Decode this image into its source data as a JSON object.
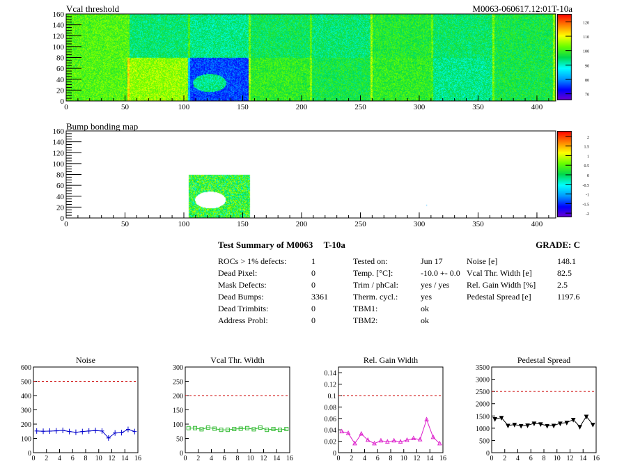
{
  "header": {
    "module_id": "M0063-060617.12:01T-10a"
  },
  "heatmaps": [
    {
      "title": "Vcal threshold",
      "xlim": [
        0,
        416
      ],
      "ylim": [
        0,
        160
      ],
      "xticks": [
        "0",
        "50",
        "100",
        "150",
        "200",
        "250",
        "300",
        "350",
        "400"
      ],
      "yticks": [
        "0",
        "20",
        "40",
        "60",
        "80",
        "100",
        "120",
        "140",
        "160"
      ],
      "palette_ticks": [
        "70",
        "80",
        "90",
        "100",
        "110",
        "120"
      ]
    },
    {
      "title": "Bump bonding map",
      "xlim": [
        0,
        416
      ],
      "ylim": [
        0,
        160
      ],
      "xticks": [
        "0",
        "50",
        "100",
        "150",
        "200",
        "250",
        "300",
        "350",
        "400"
      ],
      "yticks": [
        "0",
        "20",
        "40",
        "60",
        "80",
        "100",
        "120",
        "140",
        "160"
      ],
      "palette_ticks": [
        "-2",
        "-1.5",
        "-1",
        "-0.5",
        "0",
        "0.5",
        "1",
        "1.5",
        "2"
      ]
    }
  ],
  "summary": {
    "title": "Test Summary of M0063",
    "temp_tag": "T-10a",
    "grade_label": "GRADE:  C",
    "col1": [
      {
        "label": "ROCs > 1% defects:",
        "value": "1"
      },
      {
        "label": "Dead Pixel:",
        "value": "0"
      },
      {
        "label": "Mask Defects:",
        "value": "0"
      },
      {
        "label": "Dead Bumps:",
        "value": "3361"
      },
      {
        "label": "Dead Trimbits:",
        "value": "0"
      },
      {
        "label": "Address Probl:",
        "value": "0"
      }
    ],
    "col2": [
      {
        "label": "Tested on:",
        "value": "Jun 17"
      },
      {
        "label": "Temp. [°C]:",
        "value": "-10.0 +- 0.0"
      },
      {
        "label": "Trim / phCal:",
        "value": "yes / yes"
      },
      {
        "label": "Therm. cycl.:",
        "value": "yes"
      },
      {
        "label": "TBM1:",
        "value": "ok"
      },
      {
        "label": "TBM2:",
        "value": "ok"
      }
    ],
    "col3": [
      {
        "label": "Noise [e]",
        "value": "148.1"
      },
      {
        "label": "Vcal Thr. Width [e]",
        "value": "82.5"
      },
      {
        "label": "Rel. Gain Width [%]",
        "value": "2.5"
      },
      {
        "label": "Pedestal Spread [e]",
        "value": "1197.6"
      }
    ]
  },
  "colors": {
    "noise": "#0000cc",
    "vcal": "#33bb33",
    "gain": "#dd22cc",
    "pedestal": "#000000",
    "limit": "#cc0000"
  },
  "chart_data": [
    {
      "type": "line",
      "title": "Noise",
      "x": [
        0,
        1,
        2,
        3,
        4,
        5,
        6,
        7,
        8,
        9,
        10,
        11,
        12,
        13,
        14,
        15
      ],
      "values": [
        152,
        150,
        151,
        153,
        156,
        148,
        143,
        148,
        152,
        155,
        152,
        103,
        138,
        140,
        163,
        148
      ],
      "limit": 500,
      "xlim": [
        0,
        16
      ],
      "ylim": [
        0,
        600
      ],
      "xticks": [
        "0",
        "2",
        "4",
        "6",
        "8",
        "10",
        "12",
        "14",
        "16"
      ],
      "yticks": [
        "0",
        "100",
        "200",
        "300",
        "400",
        "500",
        "600"
      ]
    },
    {
      "type": "line",
      "title": "Vcal Thr. Width",
      "x": [
        0,
        1,
        2,
        3,
        4,
        5,
        6,
        7,
        8,
        9,
        10,
        11,
        12,
        13,
        14,
        15
      ],
      "values": [
        86,
        86,
        82,
        88,
        84,
        80,
        80,
        83,
        84,
        86,
        82,
        88,
        80,
        83,
        80,
        83
      ],
      "limit": 200,
      "xlim": [
        0,
        16
      ],
      "ylim": [
        0,
        300
      ],
      "xticks": [
        "0",
        "2",
        "4",
        "6",
        "8",
        "10",
        "12",
        "14",
        "16"
      ],
      "yticks": [
        "0",
        "50",
        "100",
        "150",
        "200",
        "250",
        "300"
      ]
    },
    {
      "type": "line",
      "title": "Rel. Gain Width",
      "x": [
        0,
        1,
        2,
        3,
        4,
        5,
        6,
        7,
        8,
        9,
        10,
        11,
        12,
        13,
        14,
        15
      ],
      "values": [
        0.037,
        0.034,
        0.016,
        0.033,
        0.022,
        0.016,
        0.021,
        0.019,
        0.021,
        0.019,
        0.022,
        0.025,
        0.023,
        0.058,
        0.027,
        0.016
      ],
      "limit": 0.1,
      "xlim": [
        0,
        16
      ],
      "ylim": [
        0,
        0.15
      ],
      "xticks": [
        "0",
        "2",
        "4",
        "6",
        "8",
        "10",
        "12",
        "14",
        "16"
      ],
      "yticks": [
        "0",
        "0.02",
        "0.04",
        "0.06",
        "0.08",
        "0.1",
        "0.12",
        "0.14"
      ]
    },
    {
      "type": "line",
      "title": "Pedestal Spread",
      "x": [
        0,
        1,
        2,
        3,
        4,
        5,
        6,
        7,
        8,
        9,
        10,
        11,
        12,
        13,
        14,
        15
      ],
      "values": [
        1380,
        1430,
        1110,
        1150,
        1100,
        1120,
        1200,
        1170,
        1100,
        1110,
        1200,
        1230,
        1350,
        1060,
        1480,
        1150
      ],
      "limit": 2500,
      "xlim": [
        0,
        16
      ],
      "ylim": [
        0,
        3500
      ],
      "xticks": [
        "0",
        "2",
        "4",
        "6",
        "8",
        "10",
        "12",
        "14",
        "16"
      ],
      "yticks": [
        "0",
        "500",
        "1000",
        "1500",
        "2000",
        "2500",
        "3000",
        "3500"
      ]
    }
  ]
}
